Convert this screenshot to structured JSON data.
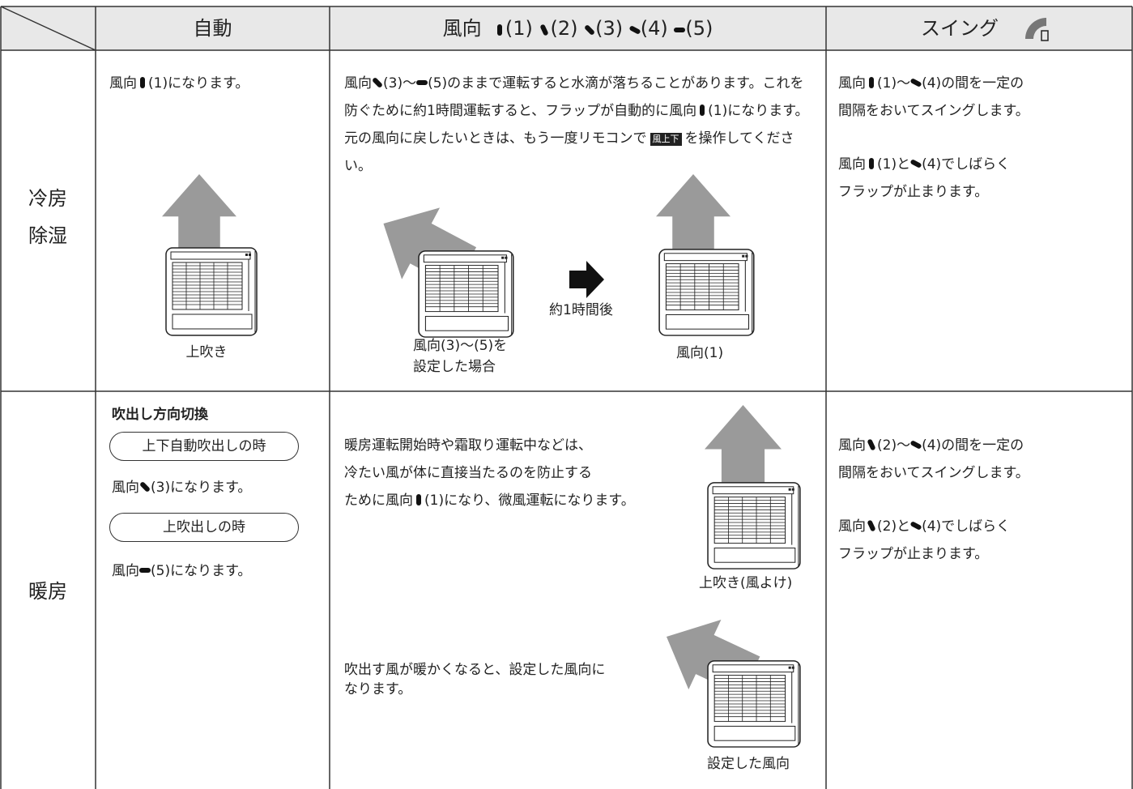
{
  "header": {
    "auto": "自動",
    "direction": "風向",
    "direction_labels": [
      "(1)",
      "(2)",
      "(3)",
      "(4)",
      "(5)"
    ],
    "swing": "スイング"
  },
  "cooling": {
    "label": [
      "冷房",
      "除湿"
    ],
    "auto": {
      "text": [
        "風向",
        "(1)になります。"
      ],
      "caption": "上吹き"
    },
    "direction": {
      "text": [
        "風向",
        "(3)～",
        "(5)のままで運転すると水滴が落ちることがあります。これを防ぐために約1時間運転すると、フラップが自動的に風向",
        "(1)になります。元の風向に戻したいときは、もう一度リモコンで",
        "を操作してください。"
      ],
      "button": "風上下",
      "before_caption": [
        "風向(3)～(5)を",
        "設定した場合"
      ],
      "arrow_caption": "約1時間後",
      "after_caption": "風向(1)"
    },
    "swing": {
      "text1": [
        "風向",
        "(1)～",
        "(4)の間を一定の",
        "間隔をおいてスイングします。"
      ],
      "text2": [
        "風向",
        "(1)と",
        "(4)でしばらく",
        "フラップが止まります。"
      ]
    }
  },
  "heating": {
    "label": "暖房",
    "auto": {
      "heading": "吹出し方向切換",
      "mode1": "上下自動吹出しの時",
      "text1": [
        "風向",
        "(3)になります。"
      ],
      "mode2": "上吹出しの時",
      "text2": [
        "風向",
        "(5)になります。"
      ]
    },
    "direction": {
      "text1": [
        "暖房運転開始時や霜取り運転中などは、",
        "冷たい風が体に直接当たるのを防止する",
        "ために風向",
        "(1)になり、微風運転になります。"
      ],
      "caption1": "上吹き(風よけ)",
      "text2": [
        "吹出す風が暖かくなると、設定した風向に",
        "なります。"
      ],
      "caption2": "設定した風向"
    },
    "swing": {
      "text1": [
        "風向",
        "(2)～",
        "(4)の間を一定の",
        "間隔をおいてスイングします。"
      ],
      "text2": [
        "風向",
        "(2)と",
        "(4)でしばらく",
        "フラップが止まります。"
      ]
    }
  }
}
